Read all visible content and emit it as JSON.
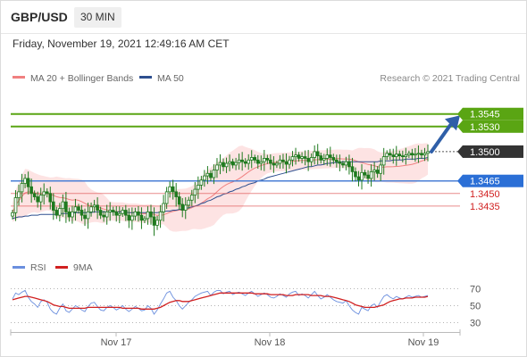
{
  "header": {
    "symbol": "GBP/USD",
    "timeframe": "30 MIN",
    "datetime": "Friday, November 19, 2021 12:49:16 AM CET"
  },
  "legend": {
    "ma20": "MA 20 + Bollinger Bands",
    "ma50": "MA 50",
    "credit": "Research © 2021 Trading Central",
    "rsi": "RSI",
    "rsi_ma": "9MA"
  },
  "colors": {
    "ma20": "#f08080",
    "band_fill": "#fde3e3",
    "ma50": "#2e4f8f",
    "candle": "#1f7a1f",
    "target": "#5aa513",
    "pivot_line": "#4a7fd6",
    "support": "#e05a5a",
    "last_price_bg": "#333333",
    "rsi": "#6b8fde",
    "rsi_ma": "#d12020",
    "arrow": "#2f5fa8"
  },
  "chart_data": {
    "type": "candlestick",
    "price_range": [
      1.339,
      1.3565
    ],
    "x_ticks": [
      "Nov 17",
      "Nov 18",
      "Nov 19"
    ],
    "levels": [
      {
        "label": "1.3545",
        "value": 1.3545,
        "kind": "target"
      },
      {
        "label": "1.3530",
        "value": 1.353,
        "kind": "target"
      },
      {
        "label": "1.3500",
        "value": 1.35,
        "kind": "last"
      },
      {
        "label": "1.3465",
        "value": 1.3465,
        "kind": "pivot"
      },
      {
        "label": "1.3450",
        "value": 1.345,
        "kind": "support"
      },
      {
        "label": "1.3435",
        "value": 1.3435,
        "kind": "support"
      }
    ],
    "close": [
      1.3427,
      1.3445,
      1.3452,
      1.3462,
      1.3468,
      1.3458,
      1.345,
      1.3446,
      1.344,
      1.3448,
      1.3452,
      1.345,
      1.344,
      1.343,
      1.3424,
      1.3432,
      1.344,
      1.3428,
      1.3422,
      1.3428,
      1.3434,
      1.343,
      1.3424,
      1.342,
      1.3428,
      1.3434,
      1.3436,
      1.343,
      1.3424,
      1.3422,
      1.3428,
      1.343,
      1.3428,
      1.3424,
      1.3426,
      1.343,
      1.3424,
      1.3418,
      1.3423,
      1.3428,
      1.3424,
      1.3418,
      1.342,
      1.3428,
      1.3422,
      1.3412,
      1.3418,
      1.3428,
      1.3438,
      1.3452,
      1.3458,
      1.3452,
      1.3446,
      1.3437,
      1.343,
      1.3436,
      1.3442,
      1.3448,
      1.3455,
      1.346,
      1.3466,
      1.3471,
      1.3474,
      1.3469,
      1.3478,
      1.3484,
      1.3487,
      1.3482,
      1.3486,
      1.3488,
      1.3484,
      1.3487,
      1.349,
      1.3488,
      1.3486,
      1.349,
      1.3493,
      1.349,
      1.3486,
      1.3488,
      1.3492,
      1.349,
      1.3486,
      1.3484,
      1.3486,
      1.349,
      1.3488,
      1.3485,
      1.349,
      1.3494,
      1.3496,
      1.3492,
      1.3494,
      1.3492,
      1.3488,
      1.3493,
      1.35,
      1.3495,
      1.349,
      1.3492,
      1.3496,
      1.3493,
      1.349,
      1.3488,
      1.3486,
      1.3484,
      1.3488,
      1.3482,
      1.3476,
      1.347,
      1.3466,
      1.3475,
      1.3472,
      1.3468,
      1.3476,
      1.3478,
      1.3474,
      1.3484,
      1.3494,
      1.3498,
      1.3496,
      1.3494,
      1.3497,
      1.3495,
      1.3494,
      1.3496,
      1.3498,
      1.3496,
      1.3497,
      1.3498,
      1.3496,
      1.3498,
      1.35
    ],
    "ma50": [
      1.342,
      1.3421,
      1.3422,
      1.3422,
      1.3423,
      1.3423,
      1.3424,
      1.3424,
      1.3424,
      1.3425,
      1.3425,
      1.3425,
      1.3425,
      1.3425,
      1.3425,
      1.3426,
      1.3426,
      1.3426,
      1.3426,
      1.3426,
      1.3427,
      1.3427,
      1.3427,
      1.3427,
      1.3427,
      1.3427,
      1.3428,
      1.3428,
      1.3428,
      1.3428,
      1.3428,
      1.3428,
      1.3428,
      1.3428,
      1.3428,
      1.3428,
      1.3428,
      1.3427,
      1.3427,
      1.3427,
      1.3427,
      1.3427,
      1.3427,
      1.3427,
      1.3427,
      1.3427,
      1.3427,
      1.3428,
      1.3428,
      1.3429,
      1.3429,
      1.343,
      1.343,
      1.3431,
      1.3431,
      1.3432,
      1.3433,
      1.3434,
      1.3435,
      1.3436,
      1.3438,
      1.3439,
      1.3441,
      1.3442,
      1.3444,
      1.3446,
      1.3447,
      1.3449,
      1.345,
      1.3452,
      1.3453,
      1.3455,
      1.3456,
      1.3458,
      1.3459,
      1.3461,
      1.3462,
      1.3463,
      1.3465,
      1.3466,
      1.3467,
      1.3469,
      1.347,
      1.3471,
      1.3472,
      1.3473,
      1.3474,
      1.3475,
      1.3476,
      1.3477,
      1.3478,
      1.3479,
      1.348,
      1.3481,
      1.3482,
      1.3482,
      1.3483,
      1.3484,
      1.3484,
      1.3485,
      1.3486,
      1.3486,
      1.3487,
      1.3487,
      1.3487,
      1.3488,
      1.3488,
      1.3488,
      1.3488,
      1.3488,
      1.3488,
      1.3488,
      1.3488,
      1.3488,
      1.3488,
      1.3488,
      1.3488,
      1.3489,
      1.3489,
      1.3489,
      1.3489,
      1.349,
      1.349,
      1.349,
      1.349,
      1.3491,
      1.3491,
      1.3491,
      1.3491,
      1.3492,
      1.3492,
      1.3492,
      1.3493
    ],
    "rsi_range": [
      20,
      80
    ],
    "rsi_levels": [
      70,
      50,
      30
    ],
    "rsi": [
      58,
      65,
      63,
      66,
      68,
      60,
      55,
      52,
      48,
      55,
      57,
      54,
      46,
      42,
      40,
      47,
      52,
      44,
      42,
      46,
      50,
      48,
      45,
      43,
      49,
      53,
      54,
      49,
      45,
      44,
      48,
      50,
      48,
      45,
      47,
      50,
      46,
      43,
      46,
      49,
      47,
      44,
      45,
      50,
      47,
      40,
      45,
      52,
      58,
      65,
      67,
      60,
      56,
      50,
      46,
      50,
      54,
      57,
      61,
      63,
      65,
      66,
      67,
      62,
      66,
      68,
      68,
      64,
      66,
      67,
      63,
      65,
      66,
      64,
      62,
      65,
      67,
      64,
      61,
      63,
      65,
      63,
      60,
      59,
      61,
      64,
      62,
      60,
      64,
      66,
      67,
      62,
      64,
      62,
      59,
      63,
      67,
      62,
      58,
      60,
      63,
      60,
      57,
      55,
      54,
      53,
      56,
      50,
      45,
      42,
      40,
      48,
      46,
      44,
      50,
      52,
      48,
      55,
      61,
      63,
      60,
      58,
      61,
      59,
      58,
      60,
      62,
      60,
      61,
      62,
      60,
      61,
      62
    ],
    "rsi_ma": [
      57,
      58,
      59,
      60,
      61,
      61,
      60,
      59,
      58,
      57,
      56,
      55,
      53,
      51,
      50,
      49,
      49,
      48,
      47,
      47,
      47,
      47,
      47,
      47,
      48,
      48,
      48,
      48,
      48,
      48,
      48,
      48,
      48,
      48,
      48,
      47,
      47,
      47,
      47,
      47,
      47,
      46,
      46,
      46,
      46,
      46,
      47,
      48,
      50,
      52,
      54,
      55,
      56,
      56,
      55,
      55,
      55,
      56,
      57,
      58,
      59,
      60,
      61,
      62,
      63,
      64,
      65,
      65,
      65,
      65,
      65,
      65,
      65,
      65,
      65,
      65,
      65,
      64,
      64,
      64,
      64,
      64,
      63,
      63,
      63,
      63,
      63,
      62,
      62,
      62,
      63,
      63,
      63,
      63,
      63,
      62,
      62,
      62,
      62,
      61,
      61,
      61,
      60,
      59,
      58,
      57,
      56,
      55,
      53,
      51,
      50,
      49,
      48,
      48,
      48,
      48,
      49,
      50,
      51,
      53,
      55,
      56,
      57,
      58,
      58,
      59,
      59,
      59,
      60,
      60,
      60,
      60,
      61
    ]
  }
}
